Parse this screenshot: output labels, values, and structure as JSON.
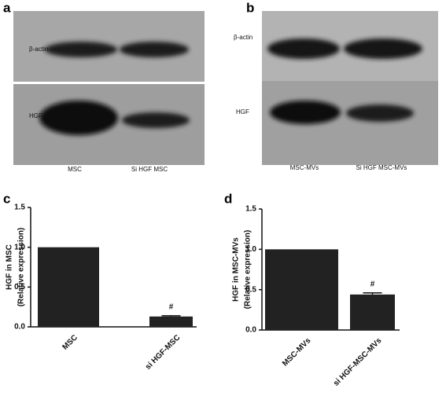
{
  "blots": [
    {
      "label": "a",
      "rows": [
        "β-actin",
        "HGF"
      ],
      "lanes": [
        "MSC",
        "Si HGF MSC"
      ]
    },
    {
      "label": "b",
      "rows": [
        "β-actin",
        "HGF"
      ],
      "lanes": [
        "MSC-MVs",
        "Si HGF MSC-MVs"
      ]
    }
  ],
  "chart_data": [
    {
      "type": "bar",
      "label": "c",
      "y_label": [
        "HGF in MSC",
        "(Relative expression)"
      ],
      "categories": [
        "MSC",
        "si HGF-MSC"
      ],
      "values": [
        1.0,
        0.13
      ],
      "errors": [
        0,
        0.01
      ],
      "value_annotations": [
        null,
        "#"
      ],
      "color": "#222222",
      "ylim": [
        0,
        1.5
      ],
      "yticks": [
        {
          "value": 0,
          "label": "0.0"
        },
        {
          "value": 0.5,
          "label": "0.5"
        },
        {
          "value": 1,
          "label": "1.0"
        },
        {
          "value": 1.5,
          "label": "1.5"
        }
      ]
    },
    {
      "type": "bar",
      "label": "d",
      "y_label": [
        "HGF in MSC-MVs",
        "(Relative expression)"
      ],
      "categories": [
        "MSC-MVs",
        "si HGF-MSC-MVs"
      ],
      "values": [
        1.0,
        0.44
      ],
      "errors": [
        0,
        0.02
      ],
      "value_annotations": [
        null,
        "#"
      ],
      "color": "#222222",
      "ylim": [
        0,
        1.5
      ],
      "yticks": [
        {
          "value": 0,
          "label": "0.0"
        },
        {
          "value": 0.5,
          "label": "0.5"
        },
        {
          "value": 1,
          "label": "1.0"
        },
        {
          "value": 1.5,
          "label": "1.5"
        }
      ]
    }
  ]
}
